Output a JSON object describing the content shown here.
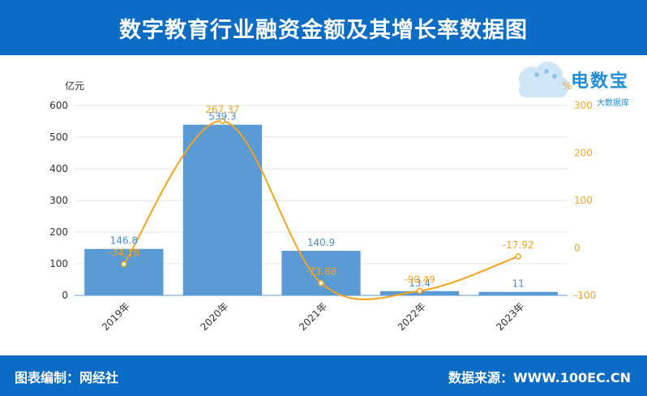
{
  "header": {
    "title": "数字教育行业融资金额及其增长率数据图"
  },
  "footer": {
    "left": "图表编制：网经社",
    "right": "数据来源：WWW.100EC.CN"
  },
  "logo": {
    "brand": "电数宝",
    "sub": "大数据库"
  },
  "colors": {
    "bar": "#5b9bd5",
    "line": "#f7a21b",
    "header": "#0a6cc4"
  },
  "chart_data": {
    "type": "bar",
    "categories": [
      "2019年",
      "2020年",
      "2021年",
      "2022年",
      "2023年"
    ],
    "series": [
      {
        "type": "bar",
        "axis": "left",
        "values": [
          146.8,
          539.3,
          140.9,
          13.4,
          11
        ],
        "labels": [
          "146.8",
          "539.3",
          "140.9",
          "13.4",
          "11"
        ]
      },
      {
        "type": "line",
        "axis": "right",
        "smooth": true,
        "values": [
          -34.18,
          267.37,
          -73.88,
          -90.49,
          -17.92
        ],
        "labels": [
          "-34.18",
          "267.37",
          "-73.88",
          "-90.49",
          "-17.92"
        ]
      }
    ],
    "yLeft": {
      "unit": "亿元",
      "ylim": [
        0,
        600
      ],
      "ticks": [
        "0",
        "100",
        "200",
        "300",
        "400",
        "500",
        "600"
      ]
    },
    "yRight": {
      "unit": "%",
      "ylim": [
        -100,
        300
      ],
      "ticks": [
        "-100",
        "0",
        "100",
        "200",
        "300"
      ]
    },
    "grid": true
  }
}
